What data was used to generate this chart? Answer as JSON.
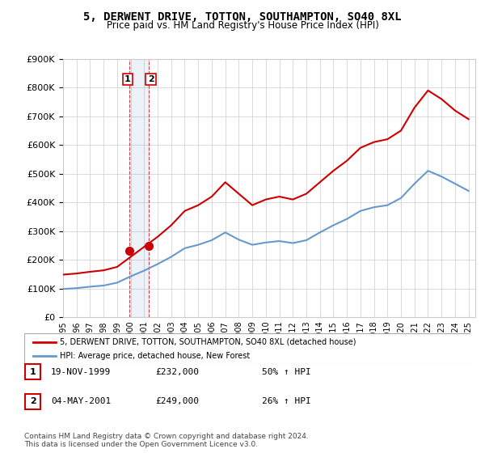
{
  "title": "5, DERWENT DRIVE, TOTTON, SOUTHAMPTON, SO40 8XL",
  "subtitle": "Price paid vs. HM Land Registry's House Price Index (HPI)",
  "red_label": "5, DERWENT DRIVE, TOTTON, SOUTHAMPTON, SO40 8XL (detached house)",
  "blue_label": "HPI: Average price, detached house, New Forest",
  "sale1_date": "19-NOV-1999",
  "sale1_price": 232000,
  "sale1_label": "50% ↑ HPI",
  "sale2_date": "04-MAY-2001",
  "sale2_price": 249000,
  "sale2_label": "26% ↑ HPI",
  "footnote1": "Contains HM Land Registry data © Crown copyright and database right 2024.",
  "footnote2": "This data is licensed under the Open Government Licence v3.0.",
  "ylim": [
    0,
    900000
  ],
  "red_color": "#cc0000",
  "blue_color": "#6699cc",
  "sale1_x": 1999.88,
  "sale2_x": 2001.34,
  "sale1_marker_price": 232000,
  "sale2_marker_price": 249000,
  "years": [
    1995,
    1996,
    1997,
    1998,
    1999,
    2000,
    2001,
    2002,
    2003,
    2004,
    2005,
    2006,
    2007,
    2008,
    2009,
    2010,
    2011,
    2012,
    2013,
    2014,
    2015,
    2016,
    2017,
    2018,
    2019,
    2020,
    2021,
    2022,
    2023,
    2024,
    2025
  ],
  "hpi_red": [
    148000,
    152000,
    158000,
    163000,
    175000,
    210000,
    245000,
    280000,
    320000,
    370000,
    390000,
    420000,
    470000,
    430000,
    390000,
    410000,
    420000,
    410000,
    430000,
    470000,
    510000,
    545000,
    590000,
    610000,
    620000,
    650000,
    730000,
    790000,
    760000,
    720000,
    690000
  ],
  "hpi_blue": [
    98000,
    101000,
    106000,
    110000,
    120000,
    142000,
    162000,
    185000,
    210000,
    240000,
    252000,
    268000,
    295000,
    270000,
    252000,
    260000,
    265000,
    258000,
    268000,
    295000,
    320000,
    342000,
    370000,
    383000,
    390000,
    415000,
    465000,
    510000,
    490000,
    465000,
    440000
  ]
}
